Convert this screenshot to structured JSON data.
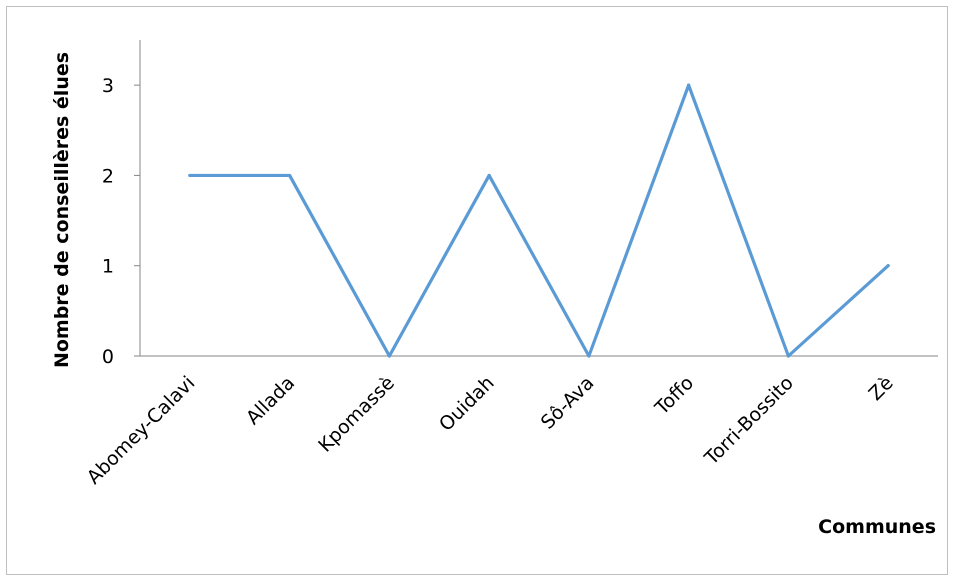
{
  "chart_data": {
    "type": "line",
    "categories": [
      "Abomey-Calavi",
      "Allada",
      "Kpomassè",
      "Ouidah",
      "Sô-Ava",
      "Toffo",
      "Torri-Bossito",
      "Zè"
    ],
    "series": [
      {
        "values": [
          2,
          2,
          0,
          2,
          0,
          3,
          0,
          1
        ],
        "color": "#5b9bd5"
      }
    ],
    "xlabel": "Communes",
    "ylabel": "Nombre de conseillères élues",
    "ylim": [
      0,
      3.5
    ],
    "yticks": [
      0,
      1,
      2,
      3
    ],
    "grid": false,
    "legend": "none"
  }
}
